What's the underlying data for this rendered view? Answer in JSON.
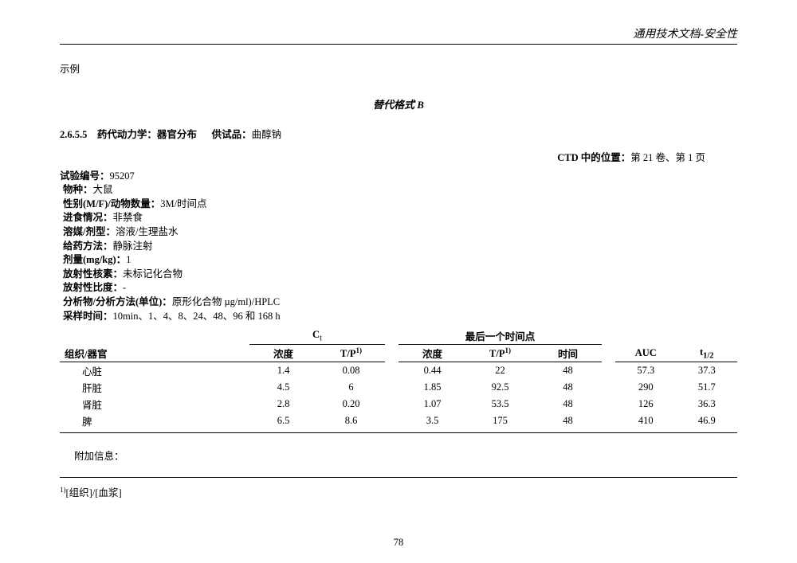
{
  "header": {
    "title": "通用技术文档-安全性"
  },
  "labels": {
    "example": "示例",
    "alt_format": "替代格式 B",
    "section_no": "2.6.5.5",
    "section_title": "药代动力学：器官分布",
    "test_article_label": "供试品：",
    "test_article_value": "曲醇钠",
    "ctd_label": "CTD 中的位置：",
    "ctd_value": "第 21 卷、第 1 页",
    "additional_info": "附加信息：",
    "footnote": "[组织]/[血浆]",
    "footnote_sup": "1)"
  },
  "study": {
    "study_no_label": "试验编号：",
    "study_no_value": "95207",
    "species_label": "物种：",
    "species_value": "大鼠",
    "sex_label": "性别(M/F)/动物数量：",
    "sex_value": "3M/时间点",
    "feeding_label": "进食情况：",
    "feeding_value": "非禁食",
    "vehicle_label": "溶媒/剂型：",
    "vehicle_value": "溶液/生理盐水",
    "route_label": "给药方法：",
    "route_value": "静脉注射",
    "dose_label": "剂量(mg/kg)：",
    "dose_value": "1",
    "nuclide_label": "放射性核素：",
    "nuclide_value": "未标记化合物",
    "spact_label": "放射性比度：",
    "spact_value": "-",
    "analyte_label": "分析物/分析方法(单位)：",
    "analyte_value": "原形化合物 µg/ml)/HPLC",
    "sampling_label": "采样时间：",
    "sampling_value": "10min、1、4、8、24、48、96 和 168 h"
  },
  "table": {
    "group_ct": "C",
    "group_ct_sub": "t",
    "group_last": "最后一个时间点",
    "col_organ": "组织/器官",
    "col_conc": "浓度",
    "col_tp": "T/P",
    "col_tp_sup": "1)",
    "col_time": "时间",
    "col_auc": "AUC",
    "col_thalf": "t",
    "col_thalf_sub": "1/2",
    "rows": [
      {
        "organ": "心脏",
        "c1": "1.4",
        "tp1": "0.08",
        "c2": "0.44",
        "tp2": "22",
        "time": "48",
        "auc": "57.3",
        "thalf": "37.3"
      },
      {
        "organ": "肝脏",
        "c1": "4.5",
        "tp1": "6",
        "c2": "1.85",
        "tp2": "92.5",
        "time": "48",
        "auc": "290",
        "thalf": "51.7"
      },
      {
        "organ": "肾脏",
        "c1": "2.8",
        "tp1": "0.20",
        "c2": "1.07",
        "tp2": "53.5",
        "time": "48",
        "auc": "126",
        "thalf": "36.3"
      },
      {
        "organ": "脾",
        "c1": "6.5",
        "tp1": "8.6",
        "c2": "3.5",
        "tp2": "175",
        "time": "48",
        "auc": "410",
        "thalf": "46.9"
      }
    ]
  },
  "page_number": "78"
}
